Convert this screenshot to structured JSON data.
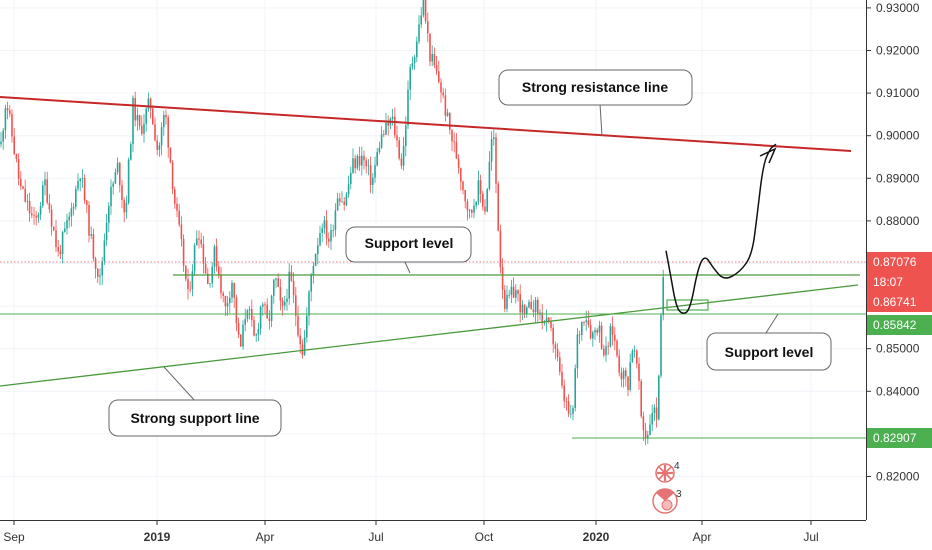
{
  "chart_data": {
    "type": "candlestick",
    "y_axis": {
      "range": [
        0.8105,
        0.9335
      ],
      "ticks": [
        "0.82000",
        "0.83000",
        "0.84000",
        "0.85000",
        "0.86000",
        "0.87000",
        "0.88000",
        "0.89000",
        "0.90000",
        "0.91000",
        "0.92000",
        "0.93000"
      ],
      "position": "right"
    },
    "x_axis": {
      "ticks": [
        {
          "label": "Sep",
          "bold": false
        },
        {
          "label": "2019",
          "bold": true
        },
        {
          "label": "Apr",
          "bold": false
        },
        {
          "label": "Jul",
          "bold": false
        },
        {
          "label": "Oct",
          "bold": false
        },
        {
          "label": "2020",
          "bold": true
        },
        {
          "label": "Apr",
          "bold": false
        },
        {
          "label": "Jul",
          "bold": false
        }
      ]
    },
    "price_badges": [
      {
        "value": "0.87076",
        "color": "#ef5350"
      },
      {
        "value": "18:07",
        "color": "#ef5350"
      },
      {
        "value": "0.86741",
        "color": "#ef5350"
      },
      {
        "value": "0.85842",
        "color": "#4caf50"
      },
      {
        "value": "0.82907",
        "color": "#4caf50"
      }
    ],
    "annotations": [
      {
        "text": "Strong resistance line"
      },
      {
        "text": "Support level"
      },
      {
        "text": "Support level"
      },
      {
        "text": "Strong support line"
      }
    ],
    "event_markers": [
      "4",
      "3"
    ],
    "series_path": [
      [
        0.898,
        1
      ],
      [
        0.909,
        6
      ],
      [
        0.888,
        20
      ],
      [
        0.879,
        35
      ],
      [
        0.889,
        45
      ],
      [
        0.872,
        58
      ],
      [
        0.881,
        70
      ],
      [
        0.892,
        80
      ],
      [
        0.874,
        92
      ],
      [
        0.866,
        100
      ],
      [
        0.884,
        108
      ],
      [
        0.893,
        118
      ],
      [
        0.881,
        125
      ],
      [
        0.907,
        133
      ],
      [
        0.901,
        140
      ],
      [
        0.908,
        150
      ],
      [
        0.896,
        158
      ],
      [
        0.906,
        165
      ],
      [
        0.884,
        175
      ],
      [
        0.873,
        182
      ],
      [
        0.862,
        188
      ],
      [
        0.879,
        198
      ],
      [
        0.865,
        208
      ],
      [
        0.873,
        215
      ],
      [
        0.859,
        225
      ],
      [
        0.866,
        232
      ],
      [
        0.849,
        240
      ],
      [
        0.861,
        247
      ],
      [
        0.851,
        255
      ],
      [
        0.862,
        262
      ],
      [
        0.855,
        268
      ],
      [
        0.867,
        275
      ],
      [
        0.858,
        282
      ],
      [
        0.867,
        290
      ],
      [
        0.855,
        298
      ],
      [
        0.849,
        303
      ],
      [
        0.869,
        312
      ],
      [
        0.88,
        322
      ],
      [
        0.875,
        330
      ],
      [
        0.887,
        338
      ],
      [
        0.884,
        345
      ],
      [
        0.893,
        352
      ],
      [
        0.895,
        362
      ],
      [
        0.889,
        372
      ],
      [
        0.899,
        380
      ],
      [
        0.904,
        392
      ],
      [
        0.893,
        402
      ],
      [
        0.915,
        410
      ],
      [
        0.924,
        418
      ],
      [
        0.932,
        423
      ],
      [
        0.919,
        430
      ],
      [
        0.912,
        440
      ],
      [
        0.901,
        450
      ],
      [
        0.894,
        458
      ],
      [
        0.888,
        463
      ],
      [
        0.881,
        470
      ],
      [
        0.888,
        478
      ],
      [
        0.883,
        485
      ],
      [
        0.902,
        493
      ],
      [
        0.871,
        500
      ],
      [
        0.86,
        505
      ],
      [
        0.864,
        515
      ],
      [
        0.857,
        525
      ],
      [
        0.861,
        532
      ],
      [
        0.858,
        540
      ],
      [
        0.855,
        548
      ],
      [
        0.851,
        555
      ],
      [
        0.84,
        562
      ],
      [
        0.836,
        567
      ],
      [
        0.832,
        572
      ],
      [
        0.852,
        577
      ],
      [
        0.859,
        585
      ],
      [
        0.853,
        592
      ],
      [
        0.856,
        598
      ],
      [
        0.848,
        605
      ],
      [
        0.855,
        612
      ],
      [
        0.845,
        620
      ],
      [
        0.842,
        628
      ],
      [
        0.851,
        632
      ],
      [
        0.846,
        637
      ],
      [
        0.832,
        642
      ],
      [
        0.829,
        647
      ],
      [
        0.836,
        652
      ],
      [
        0.834,
        657
      ],
      [
        0.852,
        660
      ],
      [
        0.873,
        665
      ]
    ],
    "projection_path": [
      [
        0.873,
        666
      ],
      [
        0.868,
        670
      ],
      [
        0.86,
        676
      ],
      [
        0.858,
        682
      ],
      [
        0.859,
        690
      ],
      [
        0.869,
        698
      ],
      [
        0.872,
        705
      ],
      [
        0.869,
        713
      ],
      [
        0.866,
        724
      ],
      [
        0.868,
        740
      ],
      [
        0.872,
        752
      ],
      [
        0.881,
        757
      ],
      [
        0.893,
        763
      ],
      [
        0.897,
        770
      ],
      [
        0.898,
        776
      ]
    ]
  }
}
